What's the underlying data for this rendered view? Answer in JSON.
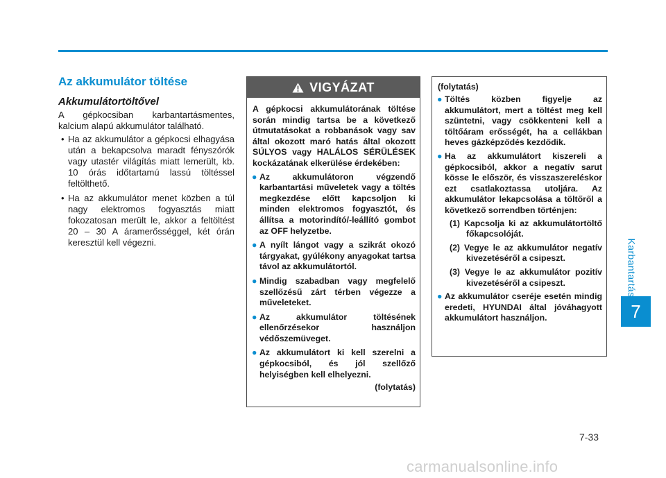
{
  "header": {
    "rule_color": "#0a8ed0"
  },
  "sidebar": {
    "section_label": "Karbantartás",
    "chapter_number": "7"
  },
  "footer": {
    "page_number": "7-33",
    "watermark": "carmanualsonline.info"
  },
  "left": {
    "title": "Az akkumulátor töltése",
    "subtitle": "Akkumulátortöltővel",
    "intro": "A gépkocsiban karbantartásmentes, kalcium alapú akkumulátor található.",
    "bullets": [
      "Ha az akkumulátor a gépkocsi elhagyása után a bekapcsolva maradt fényszórók vagy utastér világítás miatt lemerült, kb. 10 órás időtartamú lassú töltéssel feltölthető.",
      "Ha az akkumulátor menet közben a túl nagy elektromos fogyasztás miatt fokozatosan merült le, akkor a feltöltést 20 – 30 A áramerősséggel, két órán keresztül kell végezni."
    ]
  },
  "warning": {
    "header": "VIGYÁZAT",
    "intro": "A gépkocsi akkumulátorának töltése során mindig tartsa be a következő útmutatásokat a robbanások vagy sav által okozott maró hatás által okozott SÚLYOS vagy HALÁLOS SÉRÜLÉSEK kockázatának elkerülése érdekében:",
    "bullets": [
      "Az akkumulátoron végzendő karbantartási műveletek vagy a töltés megkezdése előtt kapcsoljon ki minden elektromos fogyasztót, és állítsa a motorindító/-leállító gombot az OFF helyzetbe.",
      "A nyílt lángot vagy a szikrát okozó tárgyakat, gyúlékony anyagokat tartsa távol az akkumulátortól.",
      "Mindig szabadban vagy megfelelő szellőzésű zárt térben végezze a műveleteket.",
      "Az akkumulátor töltésének ellenőrzésekor használjon védőszemüveget.",
      "Az akkumulátort ki kell szerelni a gépkocsiból, és jól szellőző helyiségben kell elhelyezni."
    ],
    "continued": "(folytatás)"
  },
  "continued_box": {
    "title": "(folytatás)",
    "bullet1": "Töltés közben figyelje az akkumulátort, mert a töltést meg kell szüntetni, vagy csökkenteni kell a töltőáram erősségét, ha a cellákban heves gázképződés kezdődik.",
    "bullet2": "Ha az akkumulátort kiszereli a gépkocsiból, akkor a negatív sarut kösse le először, és visszaszereléskor ezt csatlakoztassa utoljára. Az akkumulátor lekapcsolása a töltőről a következő sorrendben történjen:",
    "steps": [
      "(1) Kapcsolja ki az akkumulátortöltő főkapcsolóját.",
      "(2) Vegye le az akkumulátor negatív kivezetéséről a csipeszt.",
      "(3) Vegye le az akkumulátor pozitív kivezetéséről a csipeszt."
    ],
    "bullet3": "Az akkumulátor cseréje esetén mindig eredeti, HYUNDAI által jóváhagyott akkumulátort használjon."
  },
  "icons": {
    "warning": "warning-triangle-icon",
    "bullet": "bullet-dot-icon"
  },
  "colors": {
    "accent": "#0a8ed0",
    "warning_header_bg": "#5b5b5b"
  }
}
